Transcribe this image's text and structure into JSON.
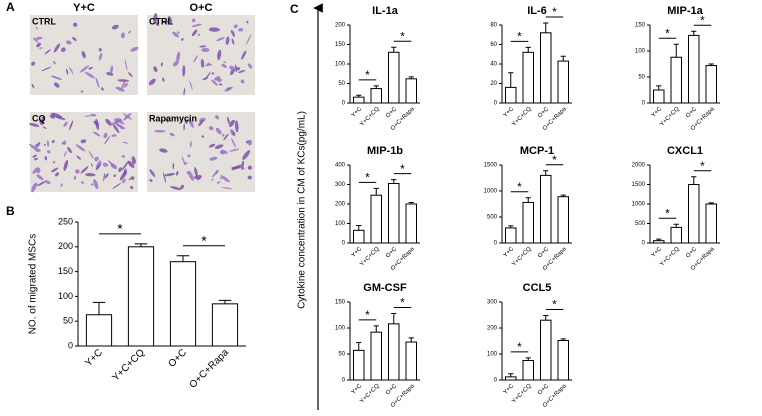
{
  "panel_labels": [
    "A",
    "B",
    "C"
  ],
  "micrographs": {
    "columns": [
      "Y+C",
      "O+C"
    ],
    "labels": [
      "CTRL",
      "CTRL",
      "CQ",
      "Rapamycin"
    ]
  },
  "cytokine_axis_label": "Cytokine concentration in CM of KCs(pg/mL)",
  "chart_data": [
    {
      "type": "bar",
      "ylabel": "NO. of migrated MSCs",
      "categories": [
        "Y+C",
        "Y+C+CQ",
        "O+C",
        "O+C+Rapa"
      ],
      "values": [
        63,
        200,
        170,
        85
      ],
      "errors": [
        25,
        6,
        12,
        7
      ],
      "ylim": [
        0,
        250
      ],
      "yticks": [
        0,
        50,
        100,
        150,
        200,
        250
      ],
      "annotations": [
        "*",
        "*"
      ],
      "color": "#ffffff"
    },
    {
      "type": "bar",
      "title": "IL-1a",
      "categories": [
        "Y+C",
        "Y+C+CQ",
        "O+C",
        "O+C+Rapa"
      ],
      "values": [
        15,
        37,
        130,
        62
      ],
      "errors": [
        5,
        7,
        13,
        5
      ],
      "ylim": [
        0,
        200
      ],
      "yticks": [
        0,
        50,
        100,
        150,
        200
      ],
      "annotations": [
        "*",
        "*"
      ],
      "color": "#ffffff"
    },
    {
      "type": "bar",
      "title": "IL-6",
      "categories": [
        "Y+C",
        "Y+C+CQ",
        "O+C",
        "O+C+Rapa"
      ],
      "values": [
        16,
        52,
        72,
        43
      ],
      "errors": [
        15,
        5,
        10,
        5
      ],
      "ylim": [
        0,
        80
      ],
      "yticks": [
        0,
        20,
        40,
        60,
        80
      ],
      "annotations": [
        "*",
        "*"
      ],
      "color": "#ffffff"
    },
    {
      "type": "bar",
      "title": "MIP-1a",
      "categories": [
        "Y+C",
        "Y+C+CQ",
        "O+C",
        "O+C+Rapa"
      ],
      "values": [
        25,
        88,
        130,
        72
      ],
      "errors": [
        8,
        25,
        8,
        3
      ],
      "ylim": [
        0,
        150
      ],
      "yticks": [
        0,
        50,
        100,
        150
      ],
      "annotations": [
        "*",
        "*"
      ],
      "color": "#ffffff"
    },
    {
      "type": "bar",
      "title": "MIP-1b",
      "categories": [
        "Y+C",
        "Y+C+CQ",
        "O+C",
        "O+C+Rapa"
      ],
      "values": [
        65,
        245,
        305,
        200
      ],
      "errors": [
        25,
        35,
        20,
        8
      ],
      "ylim": [
        0,
        400
      ],
      "yticks": [
        0,
        100,
        200,
        300,
        400
      ],
      "annotations": [
        "*",
        "*"
      ],
      "color": "#ffffff"
    },
    {
      "type": "bar",
      "title": "MCP-1",
      "categories": [
        "Y+C",
        "Y+C+CQ",
        "O+C",
        "O+C+Rapa"
      ],
      "values": [
        290,
        780,
        1300,
        890
      ],
      "errors": [
        40,
        90,
        90,
        30
      ],
      "ylim": [
        0,
        1500
      ],
      "yticks": [
        0,
        500,
        1000,
        1500
      ],
      "annotations": [
        "*",
        "*"
      ],
      "color": "#ffffff"
    },
    {
      "type": "bar",
      "title": "CXCL1",
      "categories": [
        "Y+C",
        "Y+C+CQ",
        "O+C",
        "O+C+Rapa"
      ],
      "values": [
        60,
        400,
        1500,
        1000
      ],
      "errors": [
        40,
        80,
        200,
        30
      ],
      "ylim": [
        0,
        2000
      ],
      "yticks": [
        0,
        500,
        1000,
        1500,
        2000
      ],
      "annotations": [
        "*",
        "*"
      ],
      "color": "#ffffff"
    },
    {
      "type": "bar",
      "title": "GM-CSF",
      "categories": [
        "Y+C",
        "Y+C+CQ",
        "O+C",
        "O+C+Rapa"
      ],
      "values": [
        57,
        92,
        108,
        73
      ],
      "errors": [
        15,
        12,
        20,
        8
      ],
      "ylim": [
        0,
        150
      ],
      "yticks": [
        0,
        50,
        100,
        150
      ],
      "annotations": [
        "*",
        "*"
      ],
      "color": "#ffffff"
    },
    {
      "type": "bar",
      "title": "CCL5",
      "categories": [
        "Y+C",
        "Y+C+CQ",
        "O+C",
        "O+C+Rapa"
      ],
      "values": [
        12,
        75,
        230,
        152
      ],
      "errors": [
        12,
        10,
        18,
        6
      ],
      "ylim": [
        0,
        300
      ],
      "yticks": [
        0,
        100,
        200,
        300
      ],
      "annotations": [
        "*",
        "*"
      ],
      "color": "#ffffff"
    }
  ]
}
